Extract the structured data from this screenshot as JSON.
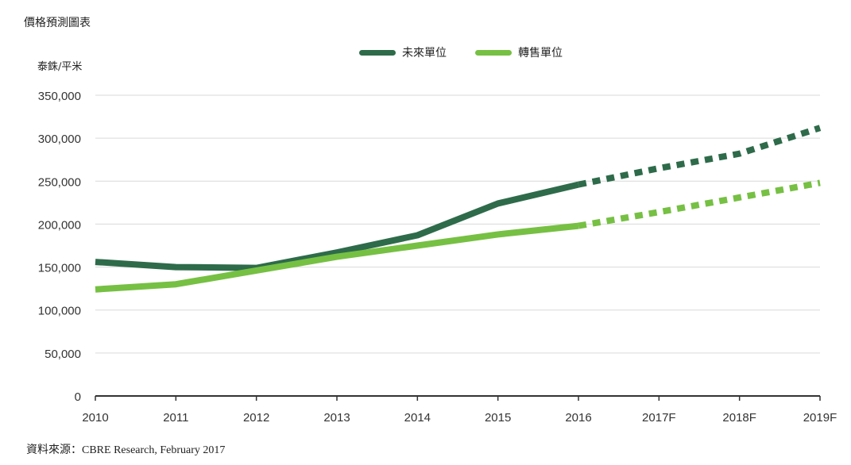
{
  "title": "價格預測圖表",
  "source": "資料來源：CBRE Research, February 2017",
  "chart_data": {
    "type": "line",
    "title": "價格預測圖表",
    "ylabel": "泰銖/平米",
    "xlabel": "",
    "categories": [
      "2010",
      "2011",
      "2012",
      "2013",
      "2014",
      "2015",
      "2016",
      "2017F",
      "2018F",
      "2019F"
    ],
    "ylim": [
      0,
      350000
    ],
    "yticks": [
      0,
      50000,
      100000,
      150000,
      200000,
      250000,
      300000,
      350000
    ],
    "ytick_labels": [
      "0",
      "50,000",
      "100,000",
      "150,000",
      "200,000",
      "250,000",
      "300,000",
      "350,000"
    ],
    "grid": true,
    "legend_position": "top-center",
    "forecast_from_index": 6,
    "series": [
      {
        "name": "未來單位",
        "color": "#2e6b4a",
        "values": [
          156000,
          150000,
          149000,
          167000,
          187000,
          224000,
          246000,
          265000,
          282000,
          312000
        ]
      },
      {
        "name": "轉售單位",
        "color": "#76c043",
        "values": [
          124000,
          130000,
          146000,
          162000,
          175000,
          188000,
          198000,
          214000,
          231000,
          248000
        ]
      }
    ]
  }
}
